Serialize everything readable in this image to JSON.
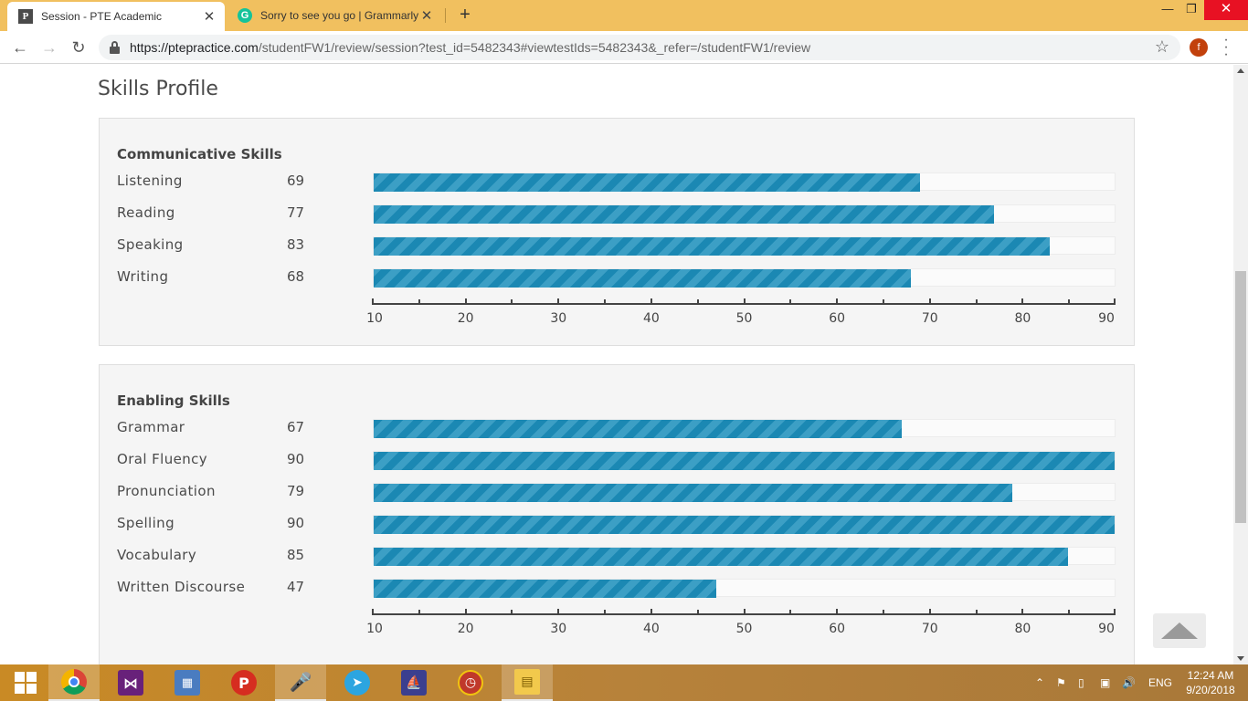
{
  "browser": {
    "tabs": [
      {
        "title": "Session - PTE Academic",
        "icon": "pte-favicon",
        "icon_letter": "P"
      },
      {
        "title": "Sorry to see you go | Grammarly",
        "icon": "grammarly-favicon",
        "icon_letter": "G"
      }
    ],
    "url_host": "https://ptepractice.com",
    "url_path": "/studentFW1/review/session?test_id=5482343#viewtestIds=5482343&_refer=/studentFW1/review",
    "profile_initial": "f"
  },
  "page": {
    "title": "Skills Profile"
  },
  "communicative": {
    "title": "Communicative Skills",
    "skills": [
      {
        "label": "Listening",
        "score": "69",
        "value": 69
      },
      {
        "label": "Reading",
        "score": "77",
        "value": 77
      },
      {
        "label": "Speaking",
        "score": "83",
        "value": 83
      },
      {
        "label": "Writing",
        "score": "68",
        "value": 68
      }
    ]
  },
  "enabling": {
    "title": "Enabling Skills",
    "skills": [
      {
        "label": "Grammar",
        "score": "67",
        "value": 67
      },
      {
        "label": "Oral Fluency",
        "score": "90",
        "value": 90
      },
      {
        "label": "Pronunciation",
        "score": "79",
        "value": 79
      },
      {
        "label": "Spelling",
        "score": "90",
        "value": 90
      },
      {
        "label": "Vocabulary",
        "score": "85",
        "value": 85
      },
      {
        "label": "Written Discourse",
        "score": "47",
        "value": 47
      }
    ]
  },
  "axis": {
    "min": 10,
    "max": 90,
    "ticks": [
      "10",
      "20",
      "30",
      "40",
      "50",
      "60",
      "70",
      "80",
      "90"
    ]
  },
  "colors": {
    "bar_primary": "#1b88b3",
    "bar_stripe": "#3c9fc5",
    "tab_strip": "#f1c05f"
  },
  "taskbar": {
    "items": [
      "start-icon",
      "chrome-icon",
      "visual-studio-icon",
      "calculator-icon",
      "pte-app-icon",
      "microphone-icon",
      "telegram-icon",
      "ship-app-icon",
      "clock-app-icon",
      "file-explorer-icon"
    ],
    "lang": "ENG",
    "time": "12:24 AM",
    "date": "9/20/2018"
  }
}
